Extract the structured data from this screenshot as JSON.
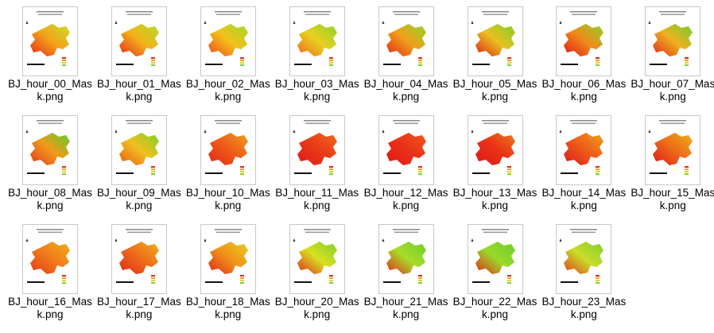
{
  "files": [
    "BJ_hour_00_Mask.png",
    "BJ_hour_01_Mask.png",
    "BJ_hour_02_Mask.png",
    "BJ_hour_03_Mask.png",
    "BJ_hour_04_Mask.png",
    "BJ_hour_05_Mask.png",
    "BJ_hour_06_Mask.png",
    "BJ_hour_07_Mask.png",
    "BJ_hour_08_Mask.png",
    "BJ_hour_09_Mask.png",
    "BJ_hour_10_Mask.png",
    "BJ_hour_11_Mask.png",
    "BJ_hour_12_Mask.png",
    "BJ_hour_13_Mask.png",
    "BJ_hour_14_Mask.png",
    "BJ_hour_15_Mask.png",
    "BJ_hour_16_Mask.png",
    "BJ_hour_17_Mask.png",
    "BJ_hour_18_Mask.png",
    "BJ_hour_20_Mask.png",
    "BJ_hour_21_Mask.png",
    "BJ_hour_22_Mask.png",
    "BJ_hour_23_Mask.png"
  ]
}
